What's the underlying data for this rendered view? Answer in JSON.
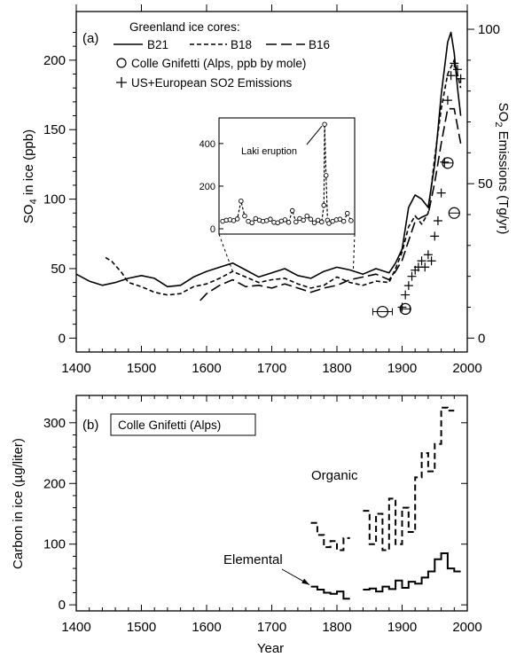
{
  "chart_data": [
    {
      "panel_label": "(a)",
      "type": "line",
      "xlabel": "",
      "ylabel": "SO4 in ice (ppb)",
      "ylabel_main": "SO",
      "ylabel_sub": "4",
      "ylabel_rest": " in ice (ppb)",
      "y2label": "SO2 Emissions (Tg/yr)",
      "y2label_main": "SO",
      "y2label_sub": "2",
      "y2label_rest": " Emissions (Tg/yr)",
      "xlim": [
        1400,
        2000
      ],
      "ylim": [
        -10,
        235
      ],
      "y2lim": [
        -4.5,
        105.75
      ],
      "x_ticks": [
        1400,
        1500,
        1600,
        1700,
        1800,
        1900,
        2000
      ],
      "y_ticks": [
        0,
        50,
        100,
        150,
        200
      ],
      "y2_ticks": [
        0,
        50,
        100
      ],
      "legend_title": "Greenland ice cores:",
      "legend_position": "top-left",
      "series": [
        {
          "name": "B21",
          "style": "solid",
          "points": [
            [
              1400,
              46
            ],
            [
              1420,
              41
            ],
            [
              1440,
              38
            ],
            [
              1460,
              40
            ],
            [
              1480,
              43
            ],
            [
              1500,
              45
            ],
            [
              1520,
              43
            ],
            [
              1540,
              37
            ],
            [
              1560,
              38
            ],
            [
              1580,
              44
            ],
            [
              1600,
              48
            ],
            [
              1620,
              51
            ],
            [
              1640,
              54
            ],
            [
              1660,
              49
            ],
            [
              1680,
              44
            ],
            [
              1700,
              47
            ],
            [
              1720,
              50
            ],
            [
              1740,
              45
            ],
            [
              1760,
              43
            ],
            [
              1780,
              48
            ],
            [
              1800,
              51
            ],
            [
              1820,
              49
            ],
            [
              1840,
              46
            ],
            [
              1860,
              50
            ],
            [
              1880,
              47
            ],
            [
              1890,
              54
            ],
            [
              1900,
              64
            ],
            [
              1910,
              94
            ],
            [
              1920,
              103
            ],
            [
              1930,
              100
            ],
            [
              1940,
              94
            ],
            [
              1950,
              125
            ],
            [
              1960,
              175
            ],
            [
              1970,
              213
            ],
            [
              1975,
              220
            ],
            [
              1980,
              205
            ],
            [
              1985,
              180
            ],
            [
              1990,
              160
            ]
          ]
        },
        {
          "name": "B18",
          "style": "dashed",
          "points": [
            [
              1445,
              58
            ],
            [
              1455,
              55
            ],
            [
              1470,
              47
            ],
            [
              1480,
              40
            ],
            [
              1500,
              37
            ],
            [
              1520,
              33
            ],
            [
              1540,
              31
            ],
            [
              1560,
              32
            ],
            [
              1580,
              37
            ],
            [
              1600,
              39
            ],
            [
              1620,
              43
            ],
            [
              1640,
              48
            ],
            [
              1660,
              44
            ],
            [
              1680,
              40
            ],
            [
              1700,
              42
            ],
            [
              1720,
              43
            ],
            [
              1740,
              39
            ],
            [
              1760,
              36
            ],
            [
              1780,
              38
            ],
            [
              1800,
              44
            ],
            [
              1820,
              40
            ],
            [
              1840,
              38
            ],
            [
              1860,
              41
            ],
            [
              1880,
              40
            ],
            [
              1890,
              50
            ],
            [
              1900,
              62
            ],
            [
              1910,
              80
            ],
            [
              1920,
              88
            ],
            [
              1930,
              82
            ],
            [
              1940,
              90
            ],
            [
              1950,
              130
            ],
            [
              1960,
              165
            ],
            [
              1970,
              190
            ],
            [
              1980,
              200
            ],
            [
              1990,
              180
            ]
          ]
        },
        {
          "name": "B16",
          "style": "long-dashed",
          "points": [
            [
              1590,
              27
            ],
            [
              1600,
              32
            ],
            [
              1620,
              38
            ],
            [
              1640,
              42
            ],
            [
              1660,
              37
            ],
            [
              1680,
              38
            ],
            [
              1700,
              36
            ],
            [
              1720,
              39
            ],
            [
              1740,
              36
            ],
            [
              1760,
              33
            ],
            [
              1780,
              36
            ],
            [
              1800,
              38
            ],
            [
              1820,
              42
            ],
            [
              1840,
              44
            ],
            [
              1860,
              46
            ],
            [
              1880,
              42
            ],
            [
              1890,
              48
            ],
            [
              1900,
              56
            ],
            [
              1910,
              70
            ],
            [
              1920,
              84
            ],
            [
              1930,
              87
            ],
            [
              1940,
              89
            ],
            [
              1950,
              112
            ],
            [
              1960,
              140
            ],
            [
              1970,
              165
            ],
            [
              1980,
              165
            ],
            [
              1990,
              140
            ]
          ]
        }
      ],
      "alps_label": "Colle Gnifetti (Alps, ppb by mole)",
      "alps_points": [
        {
          "x": 1870,
          "y": 19,
          "xerr": 15
        },
        {
          "x": 1905,
          "y": 21,
          "xerr": 7
        },
        {
          "x": 1970,
          "y": 126,
          "xerr": 0
        },
        {
          "x": 1980,
          "y": 90,
          "xerr": 0
        }
      ],
      "emissions_label": "US+European SO2 Emissions",
      "emissions_points": [
        [
          1900,
          10
        ],
        [
          1905,
          14
        ],
        [
          1910,
          17
        ],
        [
          1915,
          20
        ],
        [
          1920,
          22
        ],
        [
          1925,
          23
        ],
        [
          1930,
          25
        ],
        [
          1935,
          23
        ],
        [
          1940,
          27
        ],
        [
          1945,
          25
        ],
        [
          1950,
          33
        ],
        [
          1955,
          38
        ],
        [
          1960,
          47
        ],
        [
          1965,
          57
        ],
        [
          1970,
          77
        ],
        [
          1975,
          85
        ],
        [
          1980,
          89
        ],
        [
          1985,
          87
        ],
        [
          1990,
          84
        ]
      ],
      "inset": {
        "annotation": "Laki eruption",
        "xlim": [
          1640,
          1825
        ],
        "ylim": [
          -25,
          520
        ],
        "y_ticks": [
          0,
          200,
          400
        ],
        "points": [
          [
            1645,
            35
          ],
          [
            1650,
            40
          ],
          [
            1655,
            42
          ],
          [
            1660,
            38
          ],
          [
            1665,
            46
          ],
          [
            1670,
            130
          ],
          [
            1675,
            60
          ],
          [
            1680,
            35
          ],
          [
            1685,
            28
          ],
          [
            1690,
            48
          ],
          [
            1695,
            40
          ],
          [
            1700,
            35
          ],
          [
            1705,
            38
          ],
          [
            1710,
            45
          ],
          [
            1715,
            30
          ],
          [
            1720,
            28
          ],
          [
            1725,
            36
          ],
          [
            1730,
            42
          ],
          [
            1735,
            30
          ],
          [
            1740,
            85
          ],
          [
            1745,
            32
          ],
          [
            1750,
            48
          ],
          [
            1755,
            40
          ],
          [
            1760,
            60
          ],
          [
            1765,
            45
          ],
          [
            1770,
            28
          ],
          [
            1775,
            40
          ],
          [
            1780,
            32
          ],
          [
            1783,
            110
          ],
          [
            1784,
            490
          ],
          [
            1786,
            250
          ],
          [
            1788,
            40
          ],
          [
            1790,
            25
          ],
          [
            1795,
            35
          ],
          [
            1800,
            42
          ],
          [
            1805,
            45
          ],
          [
            1810,
            35
          ],
          [
            1815,
            72
          ],
          [
            1820,
            38
          ]
        ]
      }
    },
    {
      "panel_label": "(b)",
      "title": "Colle Gnifetti (Alps)",
      "type": "line",
      "xlabel": "Year",
      "ylabel": "Carbon in ice (µg/liter)",
      "xlim": [
        1400,
        2000
      ],
      "ylim": [
        -10,
        345
      ],
      "x_ticks": [
        1400,
        1500,
        1600,
        1700,
        1800,
        1900,
        2000
      ],
      "y_ticks": [
        0,
        100,
        200,
        300
      ],
      "series": [
        {
          "name": "Organic",
          "style": "dashed-step",
          "segments": [
            [
              [
                1760,
                135
              ],
              [
                1770,
                115
              ],
              [
                1780,
                95
              ],
              [
                1790,
                105
              ],
              [
                1800,
                90
              ],
              [
                1810,
                110
              ]
            ],
            [
              [
                1840,
                155
              ],
              [
                1850,
                100
              ],
              [
                1860,
                150
              ],
              [
                1870,
                90
              ],
              [
                1880,
                175
              ],
              [
                1890,
                100
              ],
              [
                1900,
                160
              ],
              [
                1910,
                120
              ],
              [
                1920,
                210
              ],
              [
                1930,
                250
              ],
              [
                1940,
                220
              ],
              [
                1950,
                265
              ],
              [
                1960,
                325
              ],
              [
                1970,
                320
              ]
            ]
          ]
        },
        {
          "name": "Elemental",
          "style": "solid-step",
          "segments": [
            [
              [
                1760,
                30
              ],
              [
                1770,
                25
              ],
              [
                1780,
                20
              ],
              [
                1790,
                18
              ],
              [
                1800,
                22
              ],
              [
                1810,
                10
              ]
            ],
            [
              [
                1840,
                25
              ],
              [
                1850,
                27
              ],
              [
                1860,
                22
              ],
              [
                1870,
                30
              ],
              [
                1880,
                26
              ],
              [
                1890,
                40
              ],
              [
                1900,
                28
              ],
              [
                1910,
                38
              ],
              [
                1920,
                35
              ],
              [
                1930,
                45
              ],
              [
                1940,
                55
              ],
              [
                1950,
                75
              ],
              [
                1960,
                85
              ],
              [
                1970,
                60
              ],
              [
                1980,
                55
              ]
            ]
          ]
        }
      ]
    }
  ]
}
